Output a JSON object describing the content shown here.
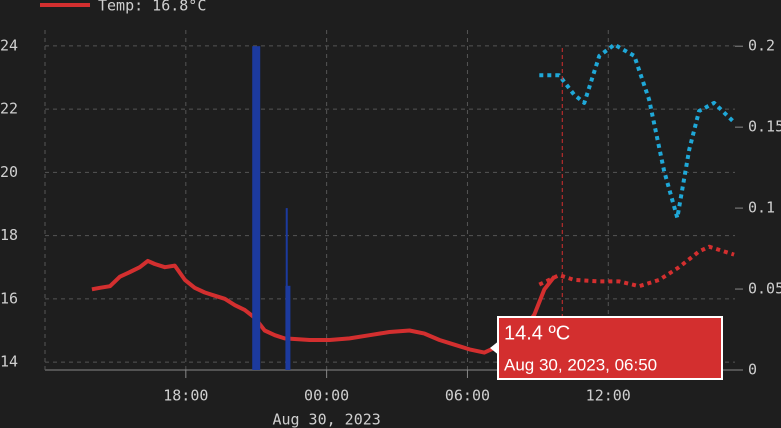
{
  "chart_data": {
    "type": "line",
    "legend_label": "Temp: 16.8°C",
    "date_label": "Aug 30, 2023",
    "tooltip": {
      "value_text": "14.4 ºC",
      "time_text": "Aug 30, 2023, 06:50"
    },
    "cursor_x": 34.04,
    "xlim": [
      12,
      41.4
    ],
    "xticks": [
      {
        "value": 18,
        "label": "18:00"
      },
      {
        "value": 24,
        "label": "00:00"
      },
      {
        "value": 30,
        "label": "06:00"
      },
      {
        "value": 36,
        "label": "12:00"
      }
    ],
    "ylim": [
      13.75,
      24.5
    ],
    "yticks": [
      14,
      16,
      18,
      20,
      22,
      24
    ],
    "y2lim": [
      0,
      0.21
    ],
    "y2ticks": [
      0,
      0.05,
      0.1,
      0.15,
      0.2
    ],
    "grid": true,
    "series": [
      {
        "name": "Temp: 16.8°C",
        "color": "#d32f2f",
        "style": "solid",
        "axis": "y",
        "x": [
          14.0,
          14.34,
          14.77,
          15.19,
          15.62,
          16.04,
          16.38,
          16.68,
          17.11,
          17.53,
          17.96,
          18.38,
          18.81,
          19.23,
          19.66,
          20.09,
          20.51,
          20.94,
          21.36,
          21.79,
          22.21,
          22.64,
          23.28,
          24.13,
          24.98,
          25.83,
          26.68,
          27.53,
          28.17,
          28.81,
          29.45,
          30.09,
          30.72,
          31.15,
          31.57,
          32.21,
          32.85,
          33.28,
          33.7
        ],
        "values": [
          16.3,
          16.35,
          16.4,
          16.7,
          16.85,
          17.0,
          17.2,
          17.1,
          17.0,
          17.05,
          16.6,
          16.35,
          16.2,
          16.1,
          16.0,
          15.8,
          15.65,
          15.4,
          15.0,
          14.85,
          14.75,
          14.73,
          14.7,
          14.7,
          14.75,
          14.85,
          14.95,
          15.0,
          14.9,
          14.7,
          14.55,
          14.4,
          14.3,
          14.45,
          14.6,
          14.85,
          15.5,
          16.3,
          16.7
        ]
      },
      {
        "color": "#d32f2f",
        "style": "dotted",
        "axis": "y",
        "x": [
          33.06,
          33.91,
          34.55,
          35.62,
          36.47,
          37.32,
          38.17,
          39.02,
          39.87,
          40.3,
          41.36
        ],
        "values": [
          16.45,
          16.75,
          16.6,
          16.55,
          16.55,
          16.4,
          16.6,
          17.0,
          17.5,
          17.65,
          17.4
        ]
      },
      {
        "color": "#1fa8d8",
        "style": "dotted",
        "axis": "y2",
        "x": [
          33.06,
          33.91,
          34.55,
          34.98,
          35.62,
          36.26,
          37.11,
          37.74,
          38.38,
          38.94,
          39.45,
          39.87,
          40.51,
          41.36
        ],
        "values": [
          0.182,
          0.182,
          0.17,
          0.165,
          0.194,
          0.201,
          0.194,
          0.167,
          0.123,
          0.094,
          0.136,
          0.16,
          0.165,
          0.153
        ]
      },
      {
        "color": "#1c3a9e",
        "style": "bar",
        "axis": "y2",
        "x": [
          21.0,
          22.3,
          22.35
        ],
        "values": [
          0.2,
          0.1,
          0.052
        ]
      }
    ]
  }
}
